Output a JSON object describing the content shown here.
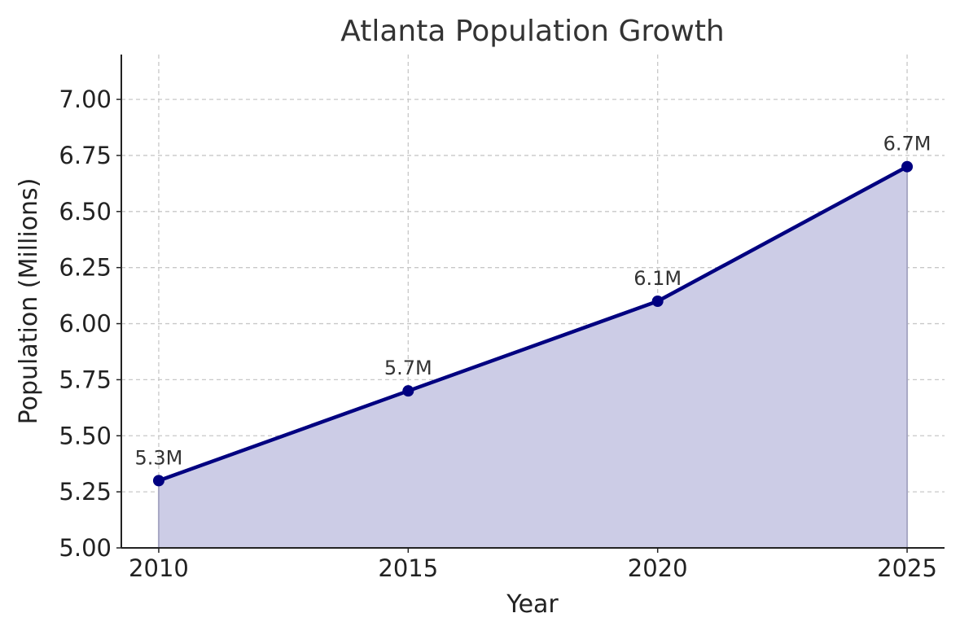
{
  "chart_data": {
    "type": "area",
    "title": "Atlanta Population Growth",
    "xlabel": "Year",
    "ylabel": "Population (Millions)",
    "x": [
      2010,
      2015,
      2020,
      2025
    ],
    "values": [
      5.3,
      5.7,
      6.1,
      6.7
    ],
    "data_labels": [
      "5.3M",
      "5.7M",
      "6.1M",
      "6.7M"
    ],
    "xlim": [
      2009.25,
      2025.75
    ],
    "ylim": [
      5.0,
      7.2
    ],
    "xticks": [
      2010,
      2015,
      2020,
      2025
    ],
    "xtick_labels": [
      "2010",
      "2015",
      "2020",
      "2025"
    ],
    "yticks": [
      5.0,
      5.25,
      5.5,
      5.75,
      6.0,
      6.25,
      6.5,
      6.75,
      7.0
    ],
    "ytick_labels": [
      "5.00",
      "5.25",
      "5.50",
      "5.75",
      "6.00",
      "6.25",
      "6.50",
      "6.75",
      "7.00"
    ],
    "grid": true,
    "markers": true,
    "colors": {
      "line": "#000080",
      "fill": "#ccccE6",
      "marker": "#000080"
    }
  }
}
